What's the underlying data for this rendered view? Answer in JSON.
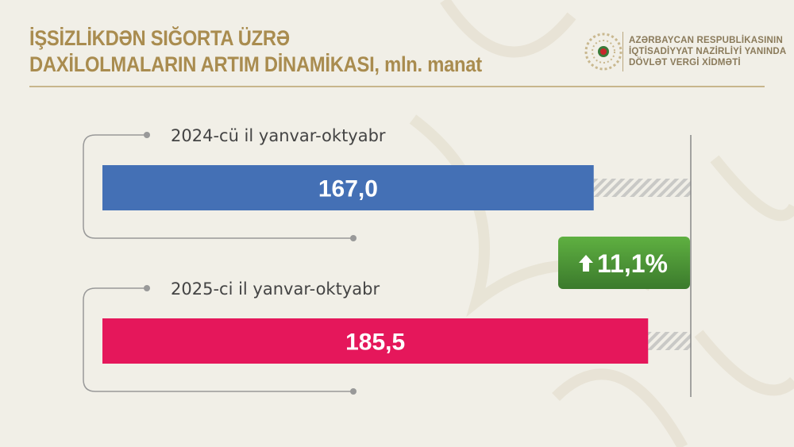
{
  "title_lines": [
    "İŞSİZLİKDƏN SIĞORTA ÜZRƏ",
    "DAXİLOLMALARIN ARTIM DİNAMİKASI, mln. manat"
  ],
  "organization": [
    "AZƏRBAYCAN RESPUBLİKASININ",
    "İQTİSADİYYAT NAZİRLİYİ YANINDA",
    "DÖVLƏT VERGİ XİDMƏTİ"
  ],
  "chart_data": {
    "type": "bar",
    "orientation": "horizontal",
    "title": "İŞSİZLİKDƏN SIĞORTA ÜZRƏ DAXİLOLMALARIN ARTIM DİNAMİKASI, mln. manat",
    "categories": [
      "2024-cü il yanvar-oktyabr",
      "2025-ci il yanvar-oktyabr"
    ],
    "values": [
      167.0,
      185.5
    ],
    "data_labels": [
      "167,0",
      "185,5"
    ],
    "colors": [
      "#4470b5",
      "#e5175b"
    ],
    "xlim": [
      0,
      200
    ],
    "grid": false,
    "annotation": {
      "text": "11,1%",
      "icon": "arrow-up-icon",
      "color": "#4a9a35"
    }
  }
}
